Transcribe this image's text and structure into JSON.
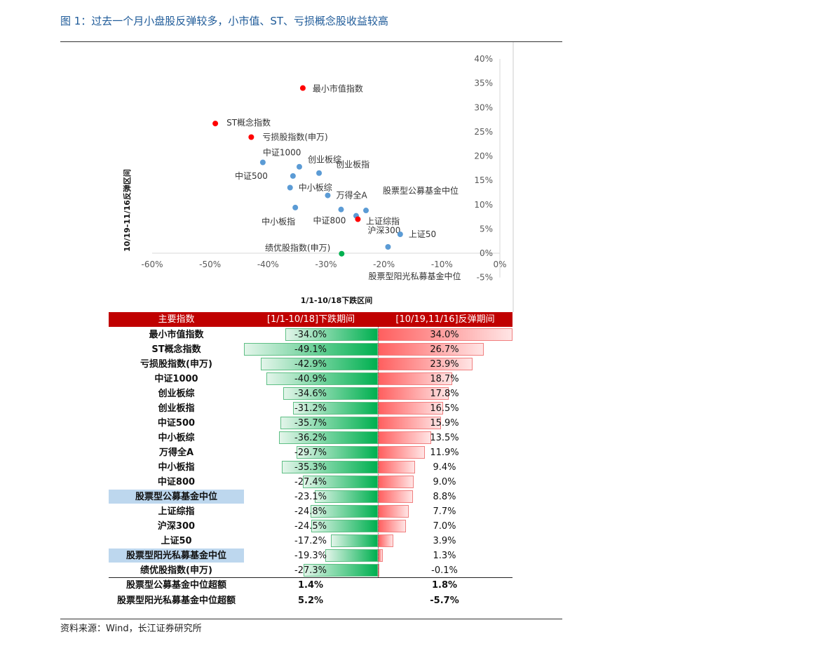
{
  "title": "图 1：过去一个月小盘股反弹较多，小市值、ST、亏损概念股收益较高",
  "source": "资料来源：Wind，长江证券研究所",
  "chart_data": {
    "type": "scatter",
    "xlabel": "1/1-10/18下跌区间",
    "ylabel": "10/19-11/16反弹区间",
    "xlim": [
      -0.6,
      0
    ],
    "ylim": [
      -0.05,
      0.4
    ],
    "xticks": [
      "-60%",
      "-50%",
      "-40%",
      "-30%",
      "-20%",
      "-10%",
      "0%"
    ],
    "yticks": [
      "40%",
      "35%",
      "30%",
      "25%",
      "20%",
      "15%",
      "10%",
      "5%",
      "0%",
      "-5%"
    ],
    "colors": {
      "red": "#ff0000",
      "blue": "#5b9bd5",
      "green": "#00b050"
    },
    "points": [
      {
        "name": "最小市值指数",
        "x": -0.34,
        "y": 0.34,
        "color": "red"
      },
      {
        "name": "ST概念指数",
        "x": -0.491,
        "y": 0.267,
        "color": "red"
      },
      {
        "name": "亏损股指数(申万)",
        "x": -0.429,
        "y": 0.239,
        "color": "red"
      },
      {
        "name": "中证1000",
        "x": -0.409,
        "y": 0.187,
        "color": "blue"
      },
      {
        "name": "创业板综",
        "x": -0.346,
        "y": 0.178,
        "color": "blue"
      },
      {
        "name": "创业板指",
        "x": -0.312,
        "y": 0.165,
        "color": "blue"
      },
      {
        "name": "中证500",
        "x": -0.357,
        "y": 0.159,
        "color": "blue"
      },
      {
        "name": "中小板综",
        "x": -0.362,
        "y": 0.135,
        "color": "blue"
      },
      {
        "name": "万得全A",
        "x": -0.297,
        "y": 0.119,
        "color": "blue"
      },
      {
        "name": "中小板指",
        "x": -0.353,
        "y": 0.094,
        "color": "blue"
      },
      {
        "name": "中证800",
        "x": -0.274,
        "y": 0.09,
        "color": "blue"
      },
      {
        "name": "股票型公募基金中位",
        "x": -0.231,
        "y": 0.088,
        "color": "blue"
      },
      {
        "name": "上证综指",
        "x": -0.248,
        "y": 0.077,
        "color": "blue"
      },
      {
        "name": "沪深300",
        "x": -0.245,
        "y": 0.07,
        "color": "red"
      },
      {
        "name": "上证50",
        "x": -0.172,
        "y": 0.039,
        "color": "blue"
      },
      {
        "name": "股票型阳光私募基金中位",
        "x": -0.193,
        "y": 0.013,
        "color": "blue"
      },
      {
        "name": "绩优股指数(申万)",
        "x": -0.273,
        "y": -0.001,
        "color": "green"
      }
    ]
  },
  "table": {
    "headers": [
      "主要指数",
      "[1/1-10/18]下跌期间",
      "[10/19,11/16]反弹期间"
    ],
    "rows": [
      {
        "name": "最小市值指数",
        "drop": "-34.0%",
        "rebound": "34.0%",
        "d": -34.0,
        "r": 34.0
      },
      {
        "name": "ST概念指数",
        "drop": "-49.1%",
        "rebound": "26.7%",
        "d": -49.1,
        "r": 26.7
      },
      {
        "name": "亏损股指数(申万)",
        "drop": "-42.9%",
        "rebound": "23.9%",
        "d": -42.9,
        "r": 23.9
      },
      {
        "name": "中证1000",
        "drop": "-40.9%",
        "rebound": "18.7%",
        "d": -40.9,
        "r": 18.7
      },
      {
        "name": "创业板综",
        "drop": "-34.6%",
        "rebound": "17.8%",
        "d": -34.6,
        "r": 17.8
      },
      {
        "name": "创业板指",
        "drop": "-31.2%",
        "rebound": "16.5%",
        "d": -31.2,
        "r": 16.5
      },
      {
        "name": "中证500",
        "drop": "-35.7%",
        "rebound": "15.9%",
        "d": -35.7,
        "r": 15.9
      },
      {
        "name": "中小板综",
        "drop": "-36.2%",
        "rebound": "13.5%",
        "d": -36.2,
        "r": 13.5
      },
      {
        "name": "万得全A",
        "drop": "-29.7%",
        "rebound": "11.9%",
        "d": -29.7,
        "r": 11.9
      },
      {
        "name": "中小板指",
        "drop": "-35.3%",
        "rebound": "9.4%",
        "d": -35.3,
        "r": 9.4
      },
      {
        "name": "中证800",
        "drop": "-27.4%",
        "rebound": "9.0%",
        "d": -27.4,
        "r": 9.0
      },
      {
        "name": "股票型公募基金中位",
        "drop": "-23.1%",
        "rebound": "8.8%",
        "d": -23.1,
        "r": 8.8,
        "highlight": true
      },
      {
        "name": "上证综指",
        "drop": "-24.8%",
        "rebound": "7.7%",
        "d": -24.8,
        "r": 7.7
      },
      {
        "name": "沪深300",
        "drop": "-24.5%",
        "rebound": "7.0%",
        "d": -24.5,
        "r": 7.0
      },
      {
        "name": "上证50",
        "drop": "-17.2%",
        "rebound": "3.9%",
        "d": -17.2,
        "r": 3.9
      },
      {
        "name": "股票型阳光私募基金中位",
        "drop": "-19.3%",
        "rebound": "1.3%",
        "d": -19.3,
        "r": 1.3,
        "highlight": true
      },
      {
        "name": "绩优股指数(申万)",
        "drop": "-27.3%",
        "rebound": "-0.1%",
        "d": -27.3,
        "r": -0.1
      }
    ],
    "excess": [
      {
        "name": "股票型公募基金中位超额",
        "drop": "1.4%",
        "rebound": "1.8%"
      },
      {
        "name": "股票型阳光私募基金中位超额",
        "drop": "5.2%",
        "rebound": "-5.7%"
      }
    ]
  }
}
